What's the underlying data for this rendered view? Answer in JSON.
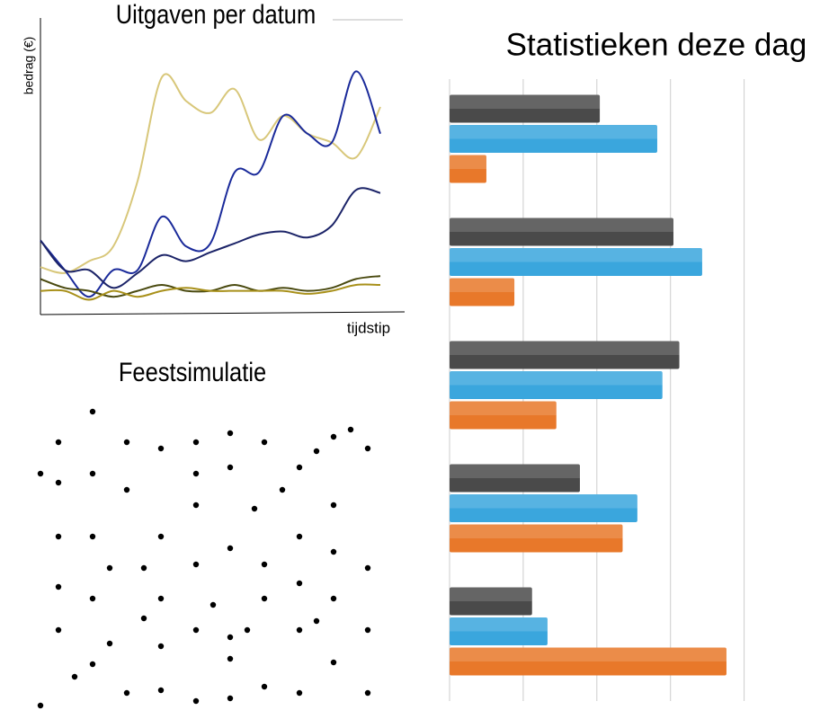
{
  "chart_data": [
    {
      "type": "line",
      "title": "Uitgaven per datum",
      "x_label": "tijdstip",
      "y_label": "bedrag (€)",
      "x": [
        0,
        1,
        2,
        3,
        4,
        5,
        6,
        7,
        8,
        9,
        10,
        11,
        12,
        13,
        14
      ],
      "xlim": [
        0,
        15
      ],
      "ylim": [
        0,
        100
      ],
      "series": [
        {
          "color": "#d8c77a",
          "values": [
            16,
            14,
            18,
            23,
            45,
            80,
            72,
            68,
            76,
            59,
            67,
            61,
            58,
            53,
            70
          ]
        },
        {
          "color": "#1a2a9a",
          "values": [
            25,
            15,
            6,
            15,
            15,
            33,
            23,
            24,
            48,
            48,
            67,
            61,
            58,
            82,
            61
          ]
        },
        {
          "color": "#1c2468",
          "values": [
            25,
            15,
            15,
            9,
            14,
            20,
            18,
            21,
            24,
            27,
            28,
            26,
            30,
            42,
            41
          ]
        },
        {
          "color": "#4a4a10",
          "values": [
            12,
            9,
            8,
            6,
            8,
            10,
            8,
            8,
            10,
            8,
            9,
            8,
            9,
            12,
            13
          ]
        },
        {
          "color": "#a8901a",
          "values": [
            8,
            8,
            5,
            8,
            6,
            8,
            9,
            8,
            8,
            8,
            8,
            7,
            8,
            10,
            10
          ]
        }
      ]
    },
    {
      "type": "scatter",
      "title": "Feestsimulatie",
      "color": "#000000",
      "xlim": [
        0,
        380
      ],
      "ylim": [
        0,
        350
      ],
      "x": [
        63,
        25,
        101,
        139,
        178,
        216,
        254,
        312,
        331,
        350,
        369,
        5,
        25,
        63,
        101,
        178,
        216,
        293,
        274,
        178,
        243,
        331,
        25,
        63,
        139,
        216,
        293,
        82,
        120,
        178,
        254,
        331,
        369,
        25,
        63,
        139,
        197,
        254,
        293,
        331,
        120,
        25,
        82,
        139,
        178,
        216,
        235,
        293,
        312,
        369,
        63,
        43,
        216,
        331,
        5,
        101,
        139,
        178,
        216,
        254,
        293,
        369
      ],
      "y": [
        342,
        308,
        308,
        301,
        308,
        318,
        308,
        298,
        314,
        322,
        301,
        273,
        263,
        273,
        255,
        273,
        280,
        280,
        255,
        238,
        234,
        238,
        203,
        203,
        203,
        190,
        203,
        168,
        168,
        172,
        172,
        186,
        168,
        147,
        134,
        134,
        127,
        134,
        151,
        134,
        112,
        99,
        84,
        81,
        99,
        91,
        99,
        99,
        109,
        99,
        61,
        47,
        67,
        63,
        15,
        29,
        32,
        20,
        23,
        36,
        29,
        29
      ]
    },
    {
      "type": "bar",
      "orientation": "horizontal",
      "title": "Statistieken deze dag",
      "xlim": [
        0,
        4.2
      ],
      "xticks": [
        0,
        1,
        2,
        3,
        4
      ],
      "grid": true,
      "series": [
        {
          "color": "#4a4a4a",
          "values": [
            2.04,
            3.04,
            3.12,
            1.77,
            1.12
          ]
        },
        {
          "color": "#3aa6dd",
          "values": [
            2.82,
            3.43,
            2.89,
            2.55,
            1.33
          ]
        },
        {
          "color": "#e8782a",
          "values": [
            0.5,
            0.88,
            1.45,
            2.35,
            3.76
          ]
        }
      ]
    }
  ]
}
